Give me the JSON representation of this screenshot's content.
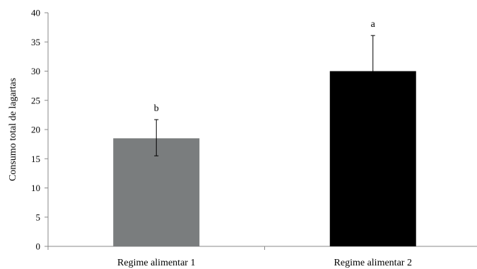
{
  "chart_data": {
    "type": "bar",
    "categories": [
      "Regime alimentar 1",
      "Regime alimentar 2"
    ],
    "values": [
      18.5,
      30
    ],
    "error_upper": [
      21.7,
      36.1
    ],
    "error_lower": [
      15.5,
      30
    ],
    "significance_labels": [
      "b",
      "a"
    ],
    "bar_colors": [
      "#7a7d7e",
      "#000000"
    ],
    "title": "",
    "xlabel": "",
    "ylabel": "Consumo total de lagartas",
    "ylim": [
      0,
      40
    ],
    "yticks": [
      "0",
      "5",
      "10",
      "15",
      "20",
      "25",
      "30",
      "35",
      "40"
    ],
    "grid": false,
    "legend": "none"
  }
}
